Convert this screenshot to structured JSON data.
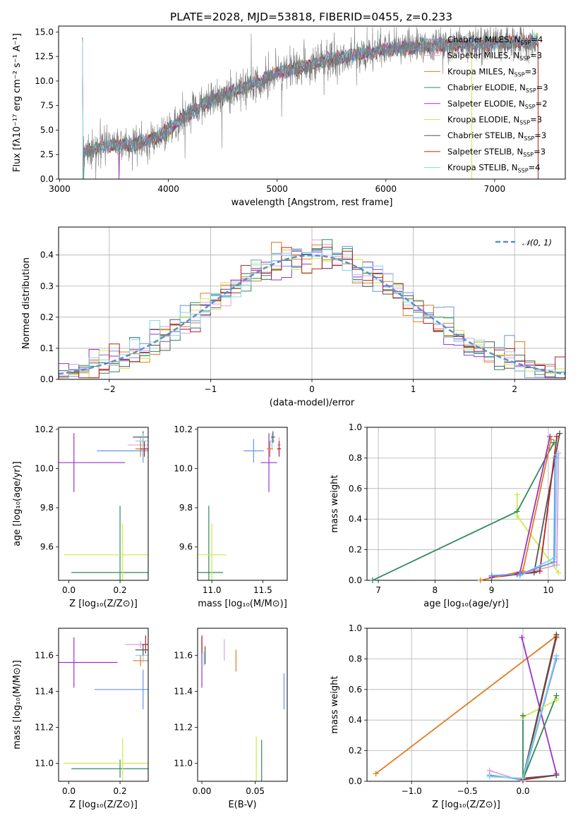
{
  "colors": {
    "chabrier_miles": "#6495ED",
    "salpeter_miles": "#DDA0DD",
    "kroupa_miles": "#E07B20",
    "chabrier_elodie": "#2E8B57",
    "salpeter_elodie": "#9932CC",
    "kroupa_elodie": "#CFE84A",
    "chabrier_stelib": "#555555",
    "salpeter_stelib": "#B22222",
    "kroupa_stelib": "#7FD6E8"
  },
  "chart_data": [
    {
      "type": "line",
      "title": "PLATE=2028, MJD=53818, FIBERID=0455, z=0.233",
      "xlabel": "wavelength [Angstrom, rest frame]",
      "ylabel": "Flux [fλ10⁻¹⁷ erg cm⁻² s⁻¹ A⁻¹]",
      "xlim": [
        2990,
        7650
      ],
      "ylim": [
        0,
        15.6
      ],
      "xticks": [
        "3000",
        "4000",
        "5000",
        "6000",
        "7000"
      ],
      "yticks": [
        "0.0",
        "2.5",
        "5.0",
        "7.5",
        "10.0",
        "12.5",
        "15.0"
      ],
      "legend_position": "right",
      "legend": [
        {
          "label": "Chabrier MILES, N",
          "sub": "SSP",
          "eq": "=4",
          "color_key": "chabrier_miles"
        },
        {
          "label": "Salpeter MILES, N",
          "sub": "SSP",
          "eq": "=3",
          "color_key": "salpeter_miles"
        },
        {
          "label": "Kroupa MILES, N",
          "sub": "SSP",
          "eq": "=3",
          "color_key": "kroupa_miles"
        },
        {
          "label": "Chabrier ELODIE, N",
          "sub": "SSP",
          "eq": "=3",
          "color_key": "chabrier_elodie"
        },
        {
          "label": "Salpeter ELODIE, N",
          "sub": "SSP",
          "eq": "=2",
          "color_key": "salpeter_elodie"
        },
        {
          "label": "Kroupa ELODIE, N",
          "sub": "SSP",
          "eq": "=3",
          "color_key": "kroupa_elodie"
        },
        {
          "label": "Chabrier STELIB, N",
          "sub": "SSP",
          "eq": "=3",
          "color_key": "chabrier_stelib"
        },
        {
          "label": "Salpeter STELIB, N",
          "sub": "SSP",
          "eq": "=3",
          "color_key": "salpeter_stelib"
        },
        {
          "label": "Kroupa STELIB, N",
          "sub": "SSP",
          "eq": "=4",
          "color_key": "kroupa_stelib"
        }
      ],
      "continuum": [
        [
          3215,
          2.7
        ],
        [
          3400,
          3.3
        ],
        [
          3700,
          3.6
        ],
        [
          3900,
          4.2
        ],
        [
          4000,
          5.0
        ],
        [
          4200,
          6.8
        ],
        [
          4500,
          8.6
        ],
        [
          4860,
          10.0
        ],
        [
          5000,
          10.8
        ],
        [
          5300,
          11.6
        ],
        [
          5500,
          12.2
        ],
        [
          6000,
          13.2
        ],
        [
          6500,
          13.6
        ],
        [
          7000,
          13.8
        ],
        [
          7400,
          14.0
        ]
      ],
      "data_range": [
        3200,
        7400
      ]
    },
    {
      "type": "step",
      "xlabel": "(data-model)/error",
      "ylabel": "Normed distribution",
      "xlim": [
        -2.5,
        2.5
      ],
      "ylim": [
        0,
        0.49
      ],
      "xticks": [
        "−2",
        "−1",
        "0",
        "1",
        "2"
      ],
      "yticks": [
        "0.0",
        "0.1",
        "0.2",
        "0.3",
        "0.4"
      ],
      "grid": true,
      "legend_position": "top-right",
      "reference_curve": {
        "label": "𝒩(0, 1)",
        "mean": 0,
        "sigma": 1,
        "color": "#5B8CD6"
      }
    },
    {
      "type": "errorbar",
      "xlabel": "Z [log₁₀(Z/Z⊙)]",
      "ylabel": "age  [log₁₀(age/yr)]",
      "xlim": [
        -0.04,
        0.31
      ],
      "ylim": [
        9.43,
        10.21
      ],
      "xticks": [
        "0.0",
        "0.2"
      ],
      "yticks": [
        "9.6",
        "9.8",
        "10.0",
        "10.2"
      ],
      "points": [
        {
          "x": 0.02,
          "y": 10.03,
          "xerr": 0.2,
          "yerr": 0.15,
          "color_key": "salpeter_elodie"
        },
        {
          "x": 0.2,
          "y": 9.47,
          "xerr": 0.19,
          "yerr": 0.34,
          "color_key": "chabrier_elodie"
        },
        {
          "x": 0.21,
          "y": 9.56,
          "xerr": 0.23,
          "yerr": 0.16,
          "color_key": "kroupa_elodie"
        },
        {
          "x": 0.29,
          "y": 10.09,
          "xerr": 0.18,
          "yerr": 0.06,
          "color_key": "chabrier_miles"
        },
        {
          "x": 0.28,
          "y": 10.12,
          "xerr": 0.05,
          "yerr": 0.04,
          "color_key": "salpeter_miles"
        },
        {
          "x": 0.28,
          "y": 10.1,
          "xerr": 0.02,
          "yerr": 0.04,
          "color_key": "kroupa_miles"
        },
        {
          "x": 0.29,
          "y": 10.16,
          "xerr": 0.04,
          "yerr": 0.03,
          "color_key": "chabrier_stelib"
        },
        {
          "x": 0.295,
          "y": 10.1,
          "xerr": 0.015,
          "yerr": 0.04,
          "color_key": "salpeter_stelib"
        },
        {
          "x": 0.29,
          "y": 10.14,
          "xerr": 0.03,
          "yerr": 0.04,
          "color_key": "kroupa_stelib"
        }
      ]
    },
    {
      "type": "errorbar",
      "xlabel": "mass [log₁₀(M/M⊙)]",
      "ylabel": "",
      "xlim": [
        10.86,
        11.74
      ],
      "ylim": [
        9.43,
        10.21
      ],
      "xticks": [
        "11.0",
        "11.5"
      ],
      "yticks": [
        "9.6",
        "9.8",
        "10.0",
        "10.2"
      ],
      "points": [
        {
          "x": 11.41,
          "y": 10.09,
          "xerr": 0.1,
          "yerr": 0.06,
          "color_key": "chabrier_miles"
        },
        {
          "x": 11.56,
          "y": 10.03,
          "xerr": 0.08,
          "yerr": 0.15,
          "color_key": "salpeter_elodie"
        },
        {
          "x": 10.97,
          "y": 9.47,
          "xerr": 0.14,
          "yerr": 0.34,
          "color_key": "chabrier_elodie"
        },
        {
          "x": 11.0,
          "y": 9.56,
          "xerr": 0.14,
          "yerr": 0.16,
          "color_key": "kroupa_elodie"
        },
        {
          "x": 11.59,
          "y": 10.14,
          "xerr": 0.03,
          "yerr": 0.04,
          "color_key": "kroupa_stelib"
        },
        {
          "x": 11.6,
          "y": 10.16,
          "xerr": 0.02,
          "yerr": 0.03,
          "color_key": "chabrier_stelib"
        },
        {
          "x": 11.66,
          "y": 10.12,
          "xerr": 0.02,
          "yerr": 0.04,
          "color_key": "salpeter_miles"
        },
        {
          "x": 11.57,
          "y": 10.1,
          "xerr": 0.03,
          "yerr": 0.04,
          "color_key": "kroupa_miles"
        },
        {
          "x": 11.66,
          "y": 10.1,
          "xerr": 0.02,
          "yerr": 0.04,
          "color_key": "salpeter_stelib"
        }
      ]
    },
    {
      "type": "line",
      "xlabel": "age  [log₁₀(age/yr)]",
      "ylabel": "mass weight",
      "xlim": [
        6.8,
        10.3
      ],
      "ylim": [
        0,
        1.0
      ],
      "xticks": [
        "7",
        "8",
        "9",
        "10"
      ],
      "yticks": [
        "0.0",
        "0.2",
        "0.4",
        "0.6",
        "0.8",
        "1.0"
      ],
      "grid": true,
      "series": [
        {
          "color_key": "chabrier_elodie",
          "x": [
            6.9,
            9.45,
            10.1
          ],
          "y": [
            0.0,
            0.45,
            0.9
          ]
        },
        {
          "color_key": "kroupa_elodie",
          "x": [
            9.45,
            9.45,
            10.18
          ],
          "y": [
            0.56,
            0.42,
            0.05
          ]
        },
        {
          "color_key": "chabrier_stelib",
          "x": [
            9.0,
            9.45,
            9.75,
            10.2
          ],
          "y": [
            0.03,
            0.04,
            0.05,
            0.96
          ]
        },
        {
          "color_key": "salpeter_stelib",
          "x": [
            9.0,
            9.5,
            9.85,
            10.15
          ],
          "y": [
            0.02,
            0.04,
            0.06,
            0.94
          ]
        },
        {
          "color_key": "salpeter_elodie",
          "x": [
            9.0,
            9.5,
            10.03
          ],
          "y": [
            0.02,
            0.05,
            0.94
          ]
        },
        {
          "color_key": "kroupa_miles",
          "x": [
            8.8,
            9.55,
            10.05
          ],
          "y": [
            0.0,
            0.06,
            0.92
          ]
        },
        {
          "color_key": "salpeter_miles",
          "x": [
            9.5,
            10.15,
            10.18
          ],
          "y": [
            0.04,
            0.1,
            0.83
          ]
        },
        {
          "color_key": "kroupa_stelib",
          "x": [
            9.5,
            10.12,
            10.15
          ],
          "y": [
            0.03,
            0.15,
            0.82
          ]
        },
        {
          "color_key": "chabrier_miles",
          "x": [
            9.0,
            9.5,
            10.1,
            10.12
          ],
          "y": [
            0.03,
            0.04,
            0.12,
            0.8
          ]
        }
      ]
    },
    {
      "type": "errorbar",
      "xlabel": "Z [log₁₀(Z/Z⊙)]",
      "ylabel": "mass [log₁₀(M/M⊙)]",
      "xlim": [
        -0.04,
        0.31
      ],
      "ylim": [
        10.9,
        11.75
      ],
      "xticks": [
        "0.0",
        "0.2"
      ],
      "yticks": [
        "11.0",
        "11.2",
        "11.4",
        "11.6"
      ],
      "points": [
        {
          "x": 0.02,
          "y": 11.56,
          "xerr": 0.17,
          "yerr": 0.14,
          "color_key": "salpeter_elodie"
        },
        {
          "x": 0.29,
          "y": 11.41,
          "xerr": 0.19,
          "yerr": 0.11,
          "color_key": "chabrier_miles"
        },
        {
          "x": 0.2,
          "y": 10.97,
          "xerr": 0.19,
          "yerr": 0.05,
          "color_key": "chabrier_elodie"
        },
        {
          "x": 0.21,
          "y": 11.0,
          "xerr": 0.23,
          "yerr": 0.14,
          "color_key": "kroupa_elodie"
        },
        {
          "x": 0.28,
          "y": 11.66,
          "xerr": 0.06,
          "yerr": 0.02,
          "color_key": "salpeter_miles"
        },
        {
          "x": 0.28,
          "y": 11.57,
          "xerr": 0.03,
          "yerr": 0.03,
          "color_key": "kroupa_miles"
        },
        {
          "x": 0.29,
          "y": 11.6,
          "xerr": 0.03,
          "yerr": 0.04,
          "color_key": "kroupa_stelib"
        },
        {
          "x": 0.29,
          "y": 11.63,
          "xerr": 0.03,
          "yerr": 0.03,
          "color_key": "chabrier_stelib"
        },
        {
          "x": 0.3,
          "y": 11.66,
          "xerr": 0.015,
          "yerr": 0.05,
          "color_key": "salpeter_stelib"
        }
      ]
    },
    {
      "type": "errorbar",
      "xlabel": "E(B-V)",
      "ylabel": "",
      "xlim": [
        -0.004,
        0.08
      ],
      "ylim": [
        10.9,
        11.75
      ],
      "xticks": [
        "0.00",
        "0.05"
      ],
      "yticks": [
        "11.0",
        "11.2",
        "11.4",
        "11.6"
      ],
      "points": [
        {
          "x": 0.0,
          "y": 11.56,
          "xerr": 0,
          "yerr": 0.14,
          "color_key": "salpeter_elodie"
        },
        {
          "x": 0.0,
          "y": 11.66,
          "xerr": 0,
          "yerr": 0.05,
          "color_key": "salpeter_stelib"
        },
        {
          "x": 0.002,
          "y": 11.58,
          "xerr": 0,
          "yerr": 0.04,
          "color_key": "kroupa_stelib"
        },
        {
          "x": 0.003,
          "y": 11.6,
          "xerr": 0,
          "yerr": 0.05,
          "color_key": "chabrier_stelib"
        },
        {
          "x": 0.021,
          "y": 11.63,
          "xerr": 0,
          "yerr": 0.06,
          "color_key": "salpeter_miles"
        },
        {
          "x": 0.032,
          "y": 11.57,
          "xerr": 0,
          "yerr": 0.06,
          "color_key": "kroupa_miles"
        },
        {
          "x": 0.051,
          "y": 11.0,
          "xerr": 0,
          "yerr": 0.15,
          "color_key": "kroupa_elodie"
        },
        {
          "x": 0.056,
          "y": 11.0,
          "xerr": 0,
          "yerr": 0.13,
          "color_key": "chabrier_elodie"
        },
        {
          "x": 0.077,
          "y": 11.4,
          "xerr": 0,
          "yerr": 0.1,
          "color_key": "chabrier_miles"
        }
      ]
    },
    {
      "type": "line",
      "xlabel": "Z [log₁₀(Z/Z⊙)]",
      "ylabel": "mass weight",
      "xlim": [
        -1.4,
        0.38
      ],
      "ylim": [
        0,
        1.0
      ],
      "xticks": [
        "−1.0",
        "−0.5",
        "0.0"
      ],
      "yticks": [
        "0.0",
        "0.2",
        "0.4",
        "0.6",
        "0.8",
        "1.0"
      ],
      "grid": true,
      "series": [
        {
          "color_key": "kroupa_miles",
          "x": [
            -1.32,
            0.3
          ],
          "y": [
            0.05,
            0.95
          ]
        },
        {
          "color_key": "salpeter_elodie",
          "x": [
            -0.01,
            0.3
          ],
          "y": [
            0.94,
            0.05
          ]
        },
        {
          "color_key": "salpeter_miles",
          "x": [
            -0.3,
            0.0,
            0.3
          ],
          "y": [
            0.07,
            0.0,
            0.82
          ]
        },
        {
          "color_key": "chabrier_miles",
          "x": [
            -0.3,
            0.0,
            0.3
          ],
          "y": [
            0.04,
            0.01,
            0.8
          ]
        },
        {
          "color_key": "kroupa_elodie",
          "x": [
            0.0,
            0.3,
            0.3
          ],
          "y": [
            0.42,
            0.53,
            0.54
          ]
        },
        {
          "color_key": "chabrier_elodie",
          "x": [
            0.0,
            0.0,
            0.3
          ],
          "y": [
            0.43,
            0.01,
            0.56
          ]
        },
        {
          "color_key": "salpeter_stelib",
          "x": [
            0.3,
            0.0,
            0.3
          ],
          "y": [
            0.04,
            0.01,
            0.94
          ]
        },
        {
          "color_key": "chabrier_stelib",
          "x": [
            0.3,
            0.0,
            0.3
          ],
          "y": [
            0.04,
            0.02,
            0.96
          ]
        },
        {
          "color_key": "kroupa_stelib",
          "x": [
            -0.3,
            0.0,
            0.3
          ],
          "y": [
            0.03,
            0.02,
            0.82
          ]
        }
      ]
    }
  ]
}
